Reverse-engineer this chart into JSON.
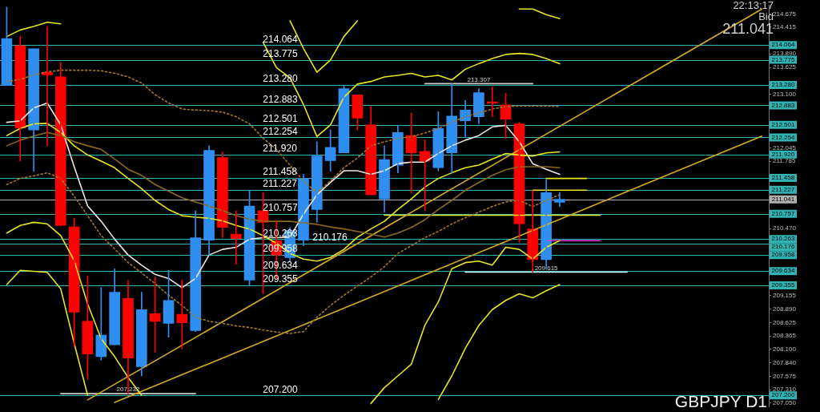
{
  "chart_data": {
    "type": "candlestick",
    "categories": [
      null,
      null,
      null,
      null,
      null,
      null,
      null,
      null,
      null,
      null,
      null,
      null,
      null,
      null,
      null,
      null,
      null,
      null,
      null,
      null,
      null,
      null,
      null,
      null,
      null,
      null,
      null,
      null,
      null,
      null,
      null,
      null,
      null,
      null,
      null,
      null,
      null,
      null,
      null,
      null,
      null,
      null,
      null,
      null,
      null,
      null,
      null,
      null,
      null,
      null,
      null,
      null,
      null,
      null,
      null,
      null,
      null
    ],
    "ohlc": [
      [
        213.27,
        214.81,
        213.27,
        214.19
      ],
      [
        214.05,
        214.23,
        211.79,
        212.44
      ],
      [
        212.4,
        213.99,
        211.59,
        213.99
      ],
      [
        213.53,
        214.43,
        212.09,
        213.48
      ],
      [
        213.44,
        213.73,
        210.52,
        210.53
      ],
      [
        210.5,
        210.67,
        208.16,
        208.83
      ],
      [
        208.65,
        209.54,
        207.51,
        208.01
      ],
      [
        207.96,
        209.31,
        207.89,
        208.38
      ],
      [
        208.19,
        209.68,
        208.19,
        209.22
      ],
      [
        209.1,
        209.46,
        207.232,
        207.93
      ],
      [
        207.76,
        209.22,
        207.58,
        208.88
      ],
      [
        208.8,
        209.52,
        208.04,
        208.65
      ],
      [
        208.61,
        209.65,
        208.34,
        209.06
      ],
      [
        208.79,
        209.46,
        208.11,
        208.62
      ],
      [
        208.47,
        210.82,
        208.45,
        210.29
      ],
      [
        210.24,
        212.09,
        209.95,
        212.0
      ],
      [
        211.86,
        211.97,
        210.29,
        210.49
      ],
      [
        210.36,
        210.82,
        209.77,
        210.27
      ],
      [
        209.46,
        211.22,
        209.34,
        210.91
      ],
      [
        210.82,
        211.17,
        209.19,
        210.59
      ],
      [
        210.23,
        210.61,
        209.49,
        209.95
      ],
      [
        209.9,
        210.49,
        209.83,
        210.43
      ],
      [
        210.24,
        211.53,
        210.13,
        211.45
      ],
      [
        210.84,
        212.17,
        210.59,
        211.89
      ],
      [
        211.8,
        212.4,
        211.59,
        212.06
      ],
      [
        211.95,
        213.28,
        211.95,
        213.21
      ],
      [
        213.09,
        213.09,
        212.4,
        212.63
      ],
      [
        212.5,
        212.86,
        211.13,
        211.13
      ],
      [
        211.05,
        212.09,
        210.79,
        211.82
      ],
      [
        211.71,
        212.49,
        211.56,
        212.35
      ],
      [
        212.29,
        212.73,
        211.17,
        211.95
      ],
      [
        211.98,
        212.21,
        210.82,
        211.79
      ],
      [
        211.66,
        212.76,
        211.6,
        212.43
      ],
      [
        211.95,
        213.307,
        211.56,
        212.67
      ],
      [
        212.58,
        212.98,
        212.27,
        212.79
      ],
      [
        212.66,
        213.21,
        212.52,
        213.13
      ],
      [
        212.95,
        213.24,
        212.66,
        212.92
      ],
      [
        212.89,
        213.12,
        212.24,
        212.61
      ],
      [
        212.52,
        212.55,
        210.2,
        210.56
      ],
      [
        210.46,
        211.21,
        209.615,
        209.86
      ],
      [
        209.86,
        211.43,
        209.68,
        211.17
      ],
      [
        210.98,
        211.17,
        210.9,
        211.041
      ],
      null,
      null,
      null,
      null,
      null,
      null,
      null,
      null,
      null,
      null,
      null,
      null,
      null,
      null,
      null
    ],
    "colors": [
      "#2f8ff0",
      "#ff0000",
      "#2f8ff0",
      "#ff0000",
      "#ff0000",
      "#ff0000",
      "#ff0000",
      "#2f8ff0",
      "#2f8ff0",
      "#ff0000",
      "#2f8ff0",
      "#ff0000",
      "#2f8ff0",
      "#ff0000",
      "#2f8ff0",
      "#2f8ff0",
      "#ff0000",
      "#ff0000",
      "#2f8ff0",
      "#ff0000",
      "#ff0000",
      "#2f8ff0",
      "#2f8ff0",
      "#2f8ff0",
      "#2f8ff0",
      "#2f8ff0",
      "#ff0000",
      "#ff0000",
      "#2f8ff0",
      "#2f8ff0",
      "#ff0000",
      "#ff0000",
      "#2f8ff0",
      "#2f8ff0",
      "#2f8ff0",
      "#2f8ff0",
      "#ff0000",
      "#ff0000",
      "#ff0000",
      "#ff0000",
      "#2f8ff0",
      "#2f8ff0",
      null,
      null,
      null,
      null,
      null,
      null,
      null,
      null,
      null,
      null,
      null,
      null,
      null,
      null,
      null
    ],
    "series": [
      {
        "type": "line",
        "color": "#8b6a1e",
        "values": [
          212.09,
          212.2,
          212.28,
          212.35,
          212.29,
          212.17,
          212.09,
          212.02,
          211.83,
          211.63,
          211.51,
          211.33,
          211.2,
          211.07,
          210.99,
          210.91,
          210.82,
          210.72,
          210.65,
          210.61,
          210.61,
          210.61,
          210.58,
          210.55,
          210.5,
          210.46,
          210.41,
          210.36,
          210.3,
          210.38,
          210.49,
          210.64,
          210.84,
          211.02,
          211.22,
          211.37,
          211.51,
          211.62,
          211.68,
          211.68,
          211.68,
          211.66,
          null,
          null,
          null,
          null,
          null,
          null,
          null,
          null,
          null,
          null,
          null,
          null,
          null,
          null,
          null
        ]
      },
      {
        "type": "line",
        "color": "#a0782a",
        "line_style": "dotted",
        "values": [
          213.35,
          213.39,
          213.48,
          213.54,
          213.57,
          213.57,
          213.57,
          213.56,
          213.51,
          213.44,
          213.32,
          213.09,
          212.93,
          212.81,
          212.79,
          212.78,
          212.75,
          212.66,
          212.52,
          212.24,
          212.02,
          211.71,
          211.4,
          211.17,
          211.4,
          211.66,
          211.85,
          212.09,
          212.17,
          212.23,
          212.27,
          212.34,
          212.43,
          212.55,
          212.66,
          212.73,
          212.81,
          212.86,
          212.87,
          212.87,
          212.87,
          212.86,
          null,
          null,
          null,
          null,
          null,
          null,
          null,
          null,
          null,
          null,
          null,
          null,
          null,
          null,
          null
        ]
      },
      {
        "type": "line",
        "color": "#a0782a",
        "line_style": "dotted",
        "values": [
          211.33,
          211.45,
          211.5,
          211.56,
          211.45,
          211.1,
          210.72,
          210.33,
          210.07,
          209.8,
          209.6,
          209.39,
          209.16,
          208.96,
          208.73,
          208.65,
          208.61,
          208.56,
          208.53,
          208.48,
          208.44,
          208.41,
          208.45,
          208.73,
          208.96,
          209.16,
          209.34,
          209.52,
          209.72,
          209.98,
          210.13,
          210.29,
          210.41,
          210.56,
          210.68,
          210.79,
          210.9,
          210.99,
          211.02,
          210.9,
          211.02,
          211.13,
          null,
          null,
          null,
          null,
          null,
          null,
          null,
          null,
          null,
          null,
          null,
          null,
          null,
          null,
          null
        ]
      },
      {
        "type": "line",
        "color": "#e6e620",
        "values": [
          214.23,
          214.36,
          214.43,
          214.51,
          214.48,
          null,
          null,
          null,
          null,
          null,
          null,
          null,
          null,
          null,
          null,
          null,
          null,
          null,
          null,
          214.12,
          213.62,
          213.42,
          212.9,
          212.27,
          212.5,
          213.04,
          213.3,
          213.35,
          213.44,
          213.47,
          213.51,
          213.44,
          213.47,
          213.38,
          213.59,
          213.7,
          213.8,
          213.88,
          213.9,
          213.88,
          213.8,
          213.7,
          null,
          null,
          null,
          null,
          null,
          null,
          null,
          null,
          null,
          null,
          null,
          null,
          null,
          null,
          null
        ]
      },
      {
        "type": "line",
        "color": "#e6e620",
        "values": [
          null,
          null,
          null,
          null,
          null,
          null,
          null,
          null,
          null,
          null,
          null,
          null,
          null,
          null,
          null,
          null,
          null,
          null,
          null,
          null,
          null,
          214.54,
          214.0,
          213.53,
          213.77,
          214.23,
          214.54,
          null,
          null,
          null,
          null,
          null,
          null,
          null,
          null,
          null,
          null,
          null,
          214.77,
          214.77,
          214.66,
          214.58,
          null,
          null,
          null,
          null,
          null,
          null,
          null,
          null,
          null,
          null,
          null,
          null,
          null,
          null,
          null
        ]
      },
      {
        "type": "line",
        "color": "#e6e620",
        "values": [
          212.29,
          212.43,
          212.52,
          212.53,
          212.35,
          212.09,
          211.91,
          211.79,
          211.66,
          211.45,
          211.25,
          211.02,
          210.84,
          210.72,
          210.69,
          210.67,
          210.62,
          210.53,
          210.46,
          210.33,
          210.18,
          209.98,
          209.87,
          209.83,
          209.9,
          210.06,
          210.3,
          210.46,
          210.61,
          210.84,
          211.05,
          211.28,
          211.45,
          211.56,
          211.66,
          211.71,
          211.83,
          211.94,
          211.91,
          211.89,
          211.95,
          211.97,
          null,
          null,
          null,
          null,
          null,
          null,
          null,
          null,
          null,
          null,
          null,
          null,
          null,
          null,
          null
        ]
      },
      {
        "type": "line",
        "color": "#e6e620",
        "values": [
          210.38,
          210.53,
          210.59,
          210.56,
          210.33,
          209.84,
          208.99,
          208.31,
          207.96,
          207.55,
          207.2,
          null,
          null,
          null,
          null,
          null,
          null,
          null,
          null,
          null,
          null,
          null,
          null,
          null,
          null,
          null,
          null,
          207.04,
          207.35,
          207.58,
          207.81,
          208.57,
          209.03,
          209.68,
          209.8,
          209.83,
          209.75,
          210.1,
          210.06,
          209.87,
          210.1,
          210.23,
          null,
          null,
          null,
          null,
          null,
          null,
          null,
          null,
          null,
          null,
          null,
          null,
          null,
          null,
          null
        ]
      },
      {
        "type": "line",
        "color": "#e6e620",
        "values": [
          209.37,
          209.65,
          209.63,
          209.61,
          209.29,
          208.22,
          207.2,
          null,
          null,
          null,
          null,
          null,
          null,
          null,
          null,
          null,
          null,
          null,
          null,
          null,
          null,
          null,
          null,
          null,
          null,
          null,
          null,
          null,
          null,
          null,
          null,
          null,
          207.12,
          207.58,
          208.12,
          208.57,
          208.88,
          209.06,
          209.19,
          209.11,
          209.25,
          209.37,
          null,
          null,
          null,
          null,
          null,
          null,
          null,
          null,
          null,
          null,
          null,
          null,
          null,
          null,
          null
        ]
      },
      {
        "type": "line",
        "color": "#d4aa20",
        "values": [
          null,
          null,
          null,
          null,
          null,
          null,
          207.11,
          null,
          null,
          null,
          null,
          null,
          null,
          null,
          null,
          null,
          null,
          null,
          null,
          null,
          null,
          null,
          null,
          null,
          null,
          null,
          null,
          null,
          null,
          null,
          null,
          null,
          null,
          null,
          null,
          null,
          null,
          null,
          null,
          null,
          null,
          null,
          null,
          null,
          null,
          null,
          null,
          null,
          null,
          null,
          null,
          null,
          null,
          null,
          null,
          null,
          214.77
        ]
      },
      {
        "type": "line",
        "color": "#d4aa20",
        "values": [
          null,
          null,
          null,
          null,
          null,
          null,
          null,
          null,
          207.06,
          null,
          null,
          null,
          null,
          null,
          null,
          null,
          null,
          null,
          null,
          null,
          null,
          null,
          null,
          null,
          null,
          null,
          null,
          null,
          null,
          null,
          null,
          null,
          null,
          null,
          null,
          null,
          null,
          null,
          null,
          null,
          null,
          null,
          null,
          null,
          null,
          null,
          null,
          null,
          null,
          null,
          null,
          null,
          null,
          null,
          null,
          null,
          212.28
        ]
      },
      {
        "type": "line",
        "color": "#f0e6e0",
        "values": [
          212.55,
          212.58,
          212.83,
          212.93,
          212.5,
          211.68,
          210.91,
          210.61,
          210.26,
          209.95,
          209.75,
          209.57,
          209.49,
          209.31,
          209.49,
          209.95,
          210.06,
          210.1,
          210.26,
          210.29,
          210.29,
          210.3,
          210.75,
          211.13,
          211.37,
          211.6,
          211.6,
          211.53,
          211.6,
          211.74,
          211.77,
          211.77,
          211.94,
          212.09,
          212.2,
          212.29,
          212.46,
          212.49,
          212.17,
          211.74,
          211.63,
          211.53,
          null,
          null,
          null,
          null,
          null,
          null,
          null,
          null,
          null,
          null,
          null,
          null,
          null,
          null,
          null
        ]
      },
      {
        "type": "line",
        "name": "207.232",
        "color": "#d0d0d0",
        "values": [
          null,
          null,
          null,
          null,
          207.232,
          null,
          null,
          null,
          null,
          null,
          null,
          null,
          null,
          null,
          207.232,
          null,
          null,
          null,
          null,
          null,
          null,
          null,
          null,
          null,
          null,
          null,
          null,
          null,
          null,
          null,
          null,
          null,
          null,
          null,
          null,
          null,
          null,
          null,
          null,
          null,
          null,
          null,
          null,
          null,
          null,
          null,
          null,
          null,
          null,
          null,
          null,
          null,
          null,
          null,
          null,
          null,
          null
        ]
      },
      {
        "type": "line",
        "name": "213.307",
        "color": "#d0d0d0",
        "values": [
          null,
          null,
          null,
          null,
          null,
          null,
          null,
          null,
          null,
          null,
          null,
          null,
          null,
          null,
          null,
          null,
          null,
          null,
          null,
          null,
          null,
          null,
          null,
          null,
          null,
          null,
          null,
          null,
          null,
          null,
          null,
          213.307,
          null,
          null,
          null,
          null,
          null,
          null,
          null,
          213.307,
          null,
          null,
          null,
          null,
          null,
          null,
          null,
          null,
          null,
          null,
          null,
          null,
          null,
          null,
          null,
          null,
          null
        ]
      },
      {
        "type": "line",
        "name": "209.615",
        "color": "#d0f0f0",
        "values": [
          null,
          null,
          null,
          null,
          null,
          null,
          null,
          null,
          null,
          null,
          null,
          null,
          null,
          null,
          null,
          null,
          null,
          null,
          null,
          null,
          null,
          null,
          null,
          null,
          null,
          null,
          null,
          null,
          null,
          null,
          null,
          null,
          null,
          null,
          209.615,
          null,
          null,
          null,
          null,
          null,
          null,
          null,
          null,
          null,
          null,
          null,
          209.615,
          null,
          null,
          null,
          null,
          null,
          null,
          null,
          null,
          null,
          null
        ]
      },
      {
        "type": "line",
        "color": "#e6e620",
        "values": [
          null,
          null,
          null,
          null,
          null,
          null,
          null,
          null,
          null,
          null,
          null,
          null,
          null,
          null,
          null,
          null,
          null,
          null,
          null,
          null,
          null,
          null,
          null,
          null,
          null,
          null,
          null,
          null,
          null,
          null,
          null,
          null,
          null,
          null,
          null,
          null,
          null,
          null,
          null,
          null,
          211.45,
          null,
          null,
          211.45,
          null,
          null,
          null,
          null,
          null,
          null,
          null,
          null,
          null,
          null,
          null,
          null,
          null
        ]
      },
      {
        "type": "line",
        "color": "#e6e620",
        "values": [
          null,
          null,
          null,
          null,
          null,
          null,
          null,
          null,
          null,
          null,
          null,
          null,
          null,
          null,
          null,
          null,
          null,
          null,
          null,
          null,
          null,
          null,
          null,
          null,
          null,
          null,
          null,
          null,
          null,
          null,
          null,
          null,
          null,
          null,
          null,
          null,
          null,
          null,
          null,
          211.22,
          null,
          null,
          null,
          211.22,
          null,
          null,
          null,
          null,
          null,
          null,
          null,
          null,
          null,
          null,
          null,
          null,
          null
        ]
      },
      {
        "type": "line",
        "color": "#e6e620",
        "values": [
          null,
          null,
          null,
          null,
          null,
          null,
          null,
          null,
          null,
          null,
          null,
          null,
          null,
          null,
          null,
          null,
          null,
          null,
          null,
          null,
          null,
          null,
          null,
          null,
          null,
          null,
          null,
          null,
          210.73,
          null,
          null,
          null,
          null,
          null,
          null,
          null,
          null,
          null,
          null,
          null,
          null,
          null,
          null,
          null,
          210.73,
          null,
          null,
          null,
          null,
          null,
          null,
          null,
          null,
          null,
          null,
          null,
          null
        ]
      },
      {
        "type": "line",
        "color": "#e040e0",
        "values": [
          null,
          null,
          null,
          null,
          null,
          null,
          null,
          null,
          null,
          null,
          null,
          null,
          null,
          null,
          null,
          null,
          null,
          null,
          null,
          null,
          null,
          null,
          null,
          null,
          null,
          null,
          null,
          null,
          null,
          null,
          null,
          null,
          null,
          null,
          null,
          null,
          null,
          null,
          null,
          null,
          210.23,
          null,
          null,
          null,
          210.23,
          null,
          null,
          null,
          null,
          null,
          null,
          null,
          null,
          null,
          null,
          null,
          null
        ]
      }
    ],
    "ylim": [
      206.98,
      214.84
    ],
    "yticks": [
      214.675,
      214.415,
      {
        "value": 213.89,
        "label": "213.890"
      },
      213.625,
      {
        "value": 213.1,
        "label": "213.100"
      },
      212.045,
      211.785,
      {
        "value": 210.47,
        "label": "210.470"
      },
      209.155,
      {
        "value": 208.89,
        "label": "208.890"
      },
      208.625,
      208.365,
      {
        "value": 208.1,
        "label": "208.100"
      },
      {
        "value": 207.84,
        "label": "207.840"
      },
      207.575,
      {
        "value": 207.31,
        "label": "207.310"
      },
      {
        "value": 207.05,
        "label": "207.050"
      }
    ],
    "tick_labels": "y",
    "ref_lines": [
      {
        "axis": "y",
        "value": 214.064,
        "label": "214.064",
        "color": "#2fb3b3"
      },
      {
        "axis": "y",
        "value": 213.775,
        "label": "213.775",
        "color": "#2fb3b3"
      },
      {
        "axis": "y",
        "value": 213.28,
        "label": "213.280",
        "color": "#2fb3b3"
      },
      {
        "axis": "y",
        "value": 212.883,
        "label": "212.883",
        "color": "#2fb3b3"
      },
      {
        "axis": "y",
        "value": 212.501,
        "label": "212.501",
        "color": "#2fb3b3"
      },
      {
        "axis": "y",
        "value": 212.254,
        "label": "212.254",
        "color": "#2fb3b3"
      },
      {
        "axis": "y",
        "value": 211.92,
        "label": "211.920",
        "color": "#2fb3b3"
      },
      {
        "axis": "y",
        "value": 211.458,
        "label": "211.458",
        "color": "#2fb3b3"
      },
      {
        "axis": "y",
        "value": 211.227,
        "label": "211.227",
        "color": "#2fb3b3"
      },
      {
        "axis": "y",
        "value": 211.041,
        "color": "#b0b0b0"
      },
      {
        "axis": "y",
        "value": 210.757,
        "label": "210.757",
        "color": "#2fb3b3"
      },
      {
        "axis": "y",
        "value": 210.263,
        "label": "210.263",
        "color": "#2fb3b3"
      },
      {
        "axis": "y",
        "value": 210.176,
        "label": "210.176",
        "color": "#2fb3b3"
      },
      {
        "axis": "y",
        "value": 209.958,
        "label": "209.958",
        "color": "#2fb3b3"
      },
      {
        "axis": "y",
        "value": 209.634,
        "label": "209.634",
        "color": "#2fb3b3"
      },
      {
        "axis": "y",
        "value": 209.355,
        "label": "209.355",
        "color": "#2fb3b3"
      },
      {
        "axis": "y",
        "value": 207.2,
        "label": "207.200",
        "color": "#2fb3b3"
      }
    ],
    "annotations": [
      "22:13:17",
      "Bid",
      "211.041",
      "GBPJPY D1"
    ]
  }
}
